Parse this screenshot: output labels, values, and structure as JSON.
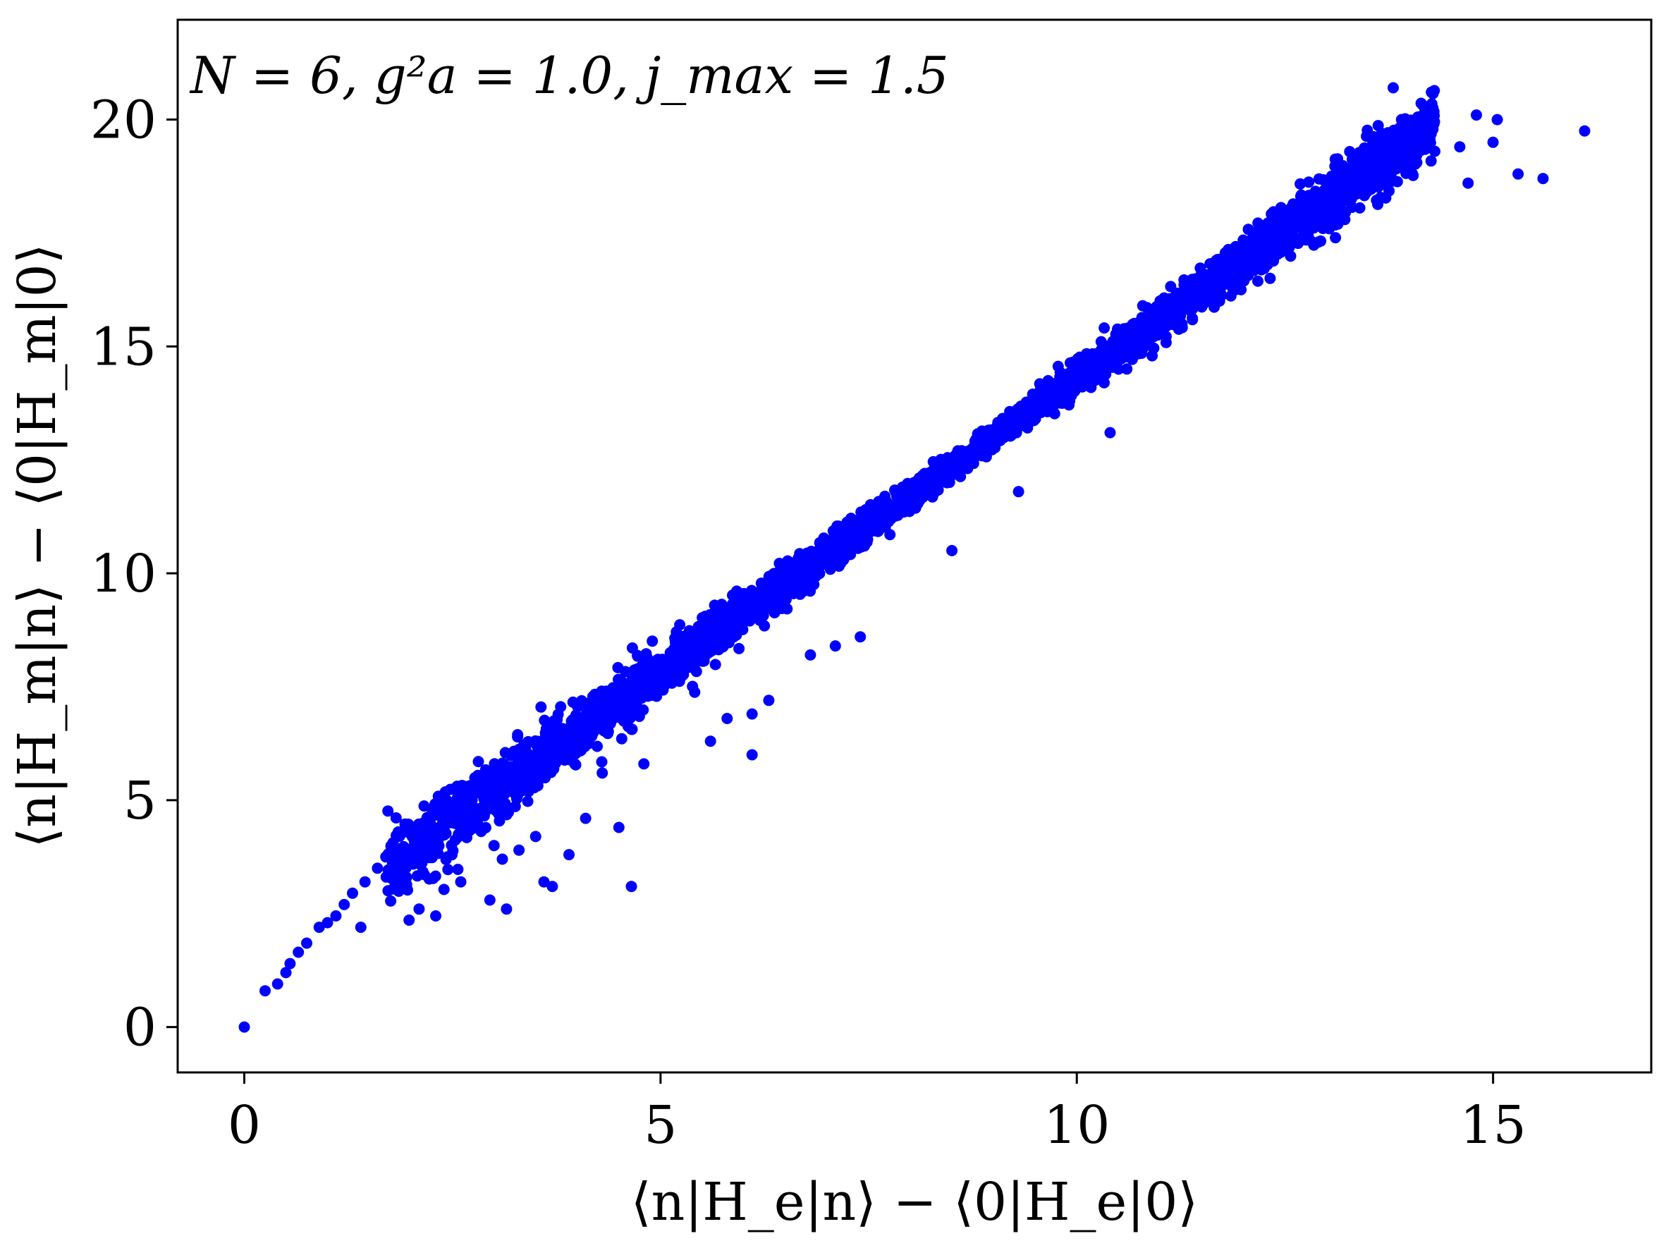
{
  "chart_data": {
    "type": "scatter",
    "annotation": "N = 6, g²a = 1.0, j_max = 1.5",
    "xlabel": "⟨n|H_e|n⟩ − ⟨0|H_e|0⟩",
    "ylabel": "⟨n|H_m|n⟩ − ⟨0|H_m|0⟩",
    "xlim": [
      -0.8,
      16.9
    ],
    "ylim": [
      -1.0,
      22.2
    ],
    "xticks": [
      0,
      5,
      10,
      15
    ],
    "xtick_labels": [
      "0",
      "5",
      "10",
      "15"
    ],
    "yticks": [
      0,
      5,
      10,
      15,
      20
    ],
    "ytick_labels": [
      "0",
      "5",
      "10",
      "15",
      "20"
    ],
    "grid": false,
    "marker_color": "#0000ff",
    "series": [
      {
        "points": [
          [
            0.0,
            0.0
          ],
          [
            0.25,
            0.8
          ],
          [
            0.4,
            0.95
          ],
          [
            0.5,
            1.2
          ],
          [
            0.55,
            1.4
          ],
          [
            0.65,
            1.65
          ],
          [
            0.75,
            1.85
          ],
          [
            0.9,
            2.2
          ],
          [
            1.0,
            2.3
          ],
          [
            1.1,
            2.45
          ],
          [
            1.2,
            2.7
          ],
          [
            1.3,
            2.95
          ],
          [
            1.4,
            2.2
          ],
          [
            1.45,
            3.2
          ],
          [
            1.6,
            3.5
          ],
          [
            1.7,
            3.75
          ],
          [
            1.8,
            3.9
          ],
          [
            1.85,
            4.3
          ],
          [
            1.95,
            3.3
          ],
          [
            2.1,
            2.6
          ],
          [
            2.2,
            4.1
          ],
          [
            2.3,
            2.45
          ],
          [
            2.4,
            4.4
          ],
          [
            2.55,
            4.9
          ],
          [
            2.6,
            3.2
          ],
          [
            2.7,
            5.2
          ],
          [
            2.8,
            4.5
          ],
          [
            2.9,
            5.0
          ],
          [
            2.95,
            2.8
          ],
          [
            3.0,
            4.0
          ],
          [
            3.1,
            3.7
          ],
          [
            3.15,
            2.6
          ],
          [
            3.3,
            3.9
          ],
          [
            3.5,
            4.2
          ],
          [
            3.6,
            3.2
          ],
          [
            3.7,
            3.1
          ],
          [
            3.9,
            3.8
          ],
          [
            4.1,
            4.6
          ],
          [
            4.3,
            5.6
          ],
          [
            4.5,
            4.4
          ],
          [
            4.65,
            3.1
          ],
          [
            4.8,
            5.8
          ],
          [
            5.6,
            6.3
          ],
          [
            5.8,
            6.8
          ],
          [
            6.1,
            6.9
          ],
          [
            6.1,
            6.0
          ],
          [
            6.3,
            7.2
          ],
          [
            6.8,
            8.2
          ],
          [
            7.1,
            8.4
          ],
          [
            7.4,
            8.6
          ],
          [
            8.5,
            10.5
          ],
          [
            9.3,
            11.8
          ],
          [
            10.4,
            13.1
          ],
          [
            12.9,
            17.3
          ],
          [
            13.0,
            17.8
          ],
          [
            13.3,
            18.5
          ],
          [
            13.5,
            19.2
          ],
          [
            13.8,
            20.7
          ],
          [
            13.9,
            20.0
          ],
          [
            14.1,
            19.6
          ],
          [
            14.3,
            19.3
          ],
          [
            14.6,
            19.4
          ],
          [
            14.7,
            18.6
          ],
          [
            14.8,
            20.1
          ],
          [
            15.0,
            19.5
          ],
          [
            15.05,
            20.0
          ],
          [
            15.3,
            18.8
          ],
          [
            15.6,
            18.7
          ],
          [
            16.1,
            19.75
          ]
        ]
      }
    ]
  }
}
